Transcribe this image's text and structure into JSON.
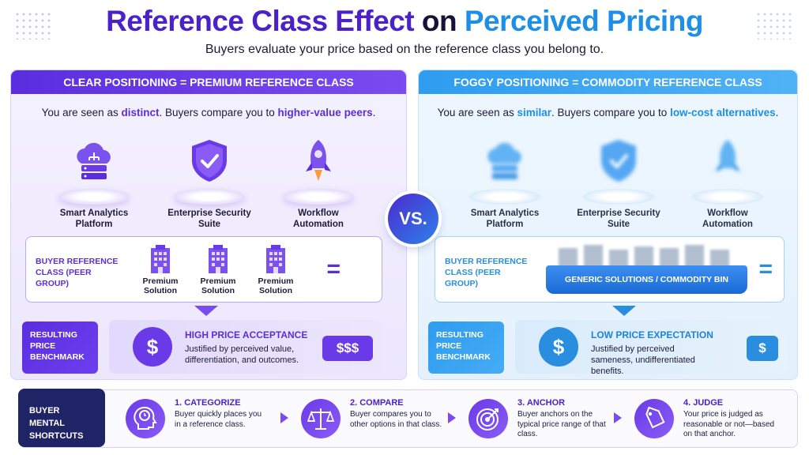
{
  "header": {
    "title_part1": "Reference Class Effect",
    "title_part2": "on",
    "title_part3": "Perceived Pricing",
    "subtitle": "Buyers evaluate your price based on the reference class you belong to."
  },
  "vs_label": "VS.",
  "left_panel": {
    "heading": "CLEAR POSITIONING = PREMIUM REFERENCE CLASS",
    "desc_pre": "You are seen as ",
    "desc_hl1": "distinct",
    "desc_mid": ". Buyers compare you to ",
    "desc_hl2": "higher-value peers",
    "desc_end": ".",
    "products": [
      {
        "line1": "Smart Analytics",
        "line2": "Platform"
      },
      {
        "line1": "Enterprise Security",
        "line2": "Suite"
      },
      {
        "line1": "Workflow",
        "line2": "Automation"
      }
    ],
    "ref_label_1": "BUYER REFERENCE",
    "ref_label_2": "CLASS (PEER GROUP)",
    "peers": [
      {
        "line1": "Premium",
        "line2": "Solution"
      },
      {
        "line1": "Premium",
        "line2": "Solution"
      },
      {
        "line1": "Premium",
        "line2": "Solution"
      }
    ],
    "equals": "=",
    "bench_1": "RESULTING",
    "bench_2": "PRICE",
    "bench_3": "BENCHMARK",
    "dollar": "$",
    "result_title": "HIGH PRICE ACCEPTANCE",
    "result_desc": "Justified by perceived value, differentiation, and outcomes.",
    "price_badge": "$$$"
  },
  "right_panel": {
    "heading": "FOGGY POSITIONING = COMMODITY REFERENCE CLASS",
    "desc_pre": "You are seen as ",
    "desc_hl1": "similar",
    "desc_mid": ". Buyers compare you to ",
    "desc_hl2": "low-cost alternatives",
    "desc_end": ".",
    "products": [
      {
        "line1": "Smart Analytics",
        "line2": "Platform"
      },
      {
        "line1": "Enterprise Security",
        "line2": "Suite"
      },
      {
        "line1": "Workflow",
        "line2": "Automation"
      }
    ],
    "ref_label_1": "BUYER REFERENCE",
    "ref_label_2": "CLASS (PEER GROUP)",
    "bin_label": "GENERIC SOLUTIONS / COMMODITY BIN",
    "equals": "=",
    "bench_1": "RESULTING",
    "bench_2": "PRICE",
    "bench_3": "BENCHMARK",
    "dollar": "$",
    "result_title": "LOW PRICE EXPECTATION",
    "result_desc": "Justified by perceived sameness, undifferentiated benefits.",
    "price_badge": "$"
  },
  "shortcuts": {
    "head_1": "BUYER MENTAL",
    "head_2": "SHORTCUTS",
    "steps": [
      {
        "title": "1. CATEGORIZE",
        "desc": "Buyer quickly places you in a reference class.",
        "icon": "head-clock-icon"
      },
      {
        "title": "2. COMPARE",
        "desc": "Buyer compares you to other options in that class.",
        "icon": "scale-icon"
      },
      {
        "title": "3. ANCHOR",
        "desc": "Buyer anchors on the typical price range of that class.",
        "icon": "target-icon"
      },
      {
        "title": "4. JUDGE",
        "desc": "Your price is judged as reasonable or not—based on that anchor.",
        "icon": "price-tag-icon"
      }
    ]
  },
  "colors": {
    "purple": "#5b2fd8",
    "blue": "#1d8fe6",
    "navy": "#1f2466"
  }
}
